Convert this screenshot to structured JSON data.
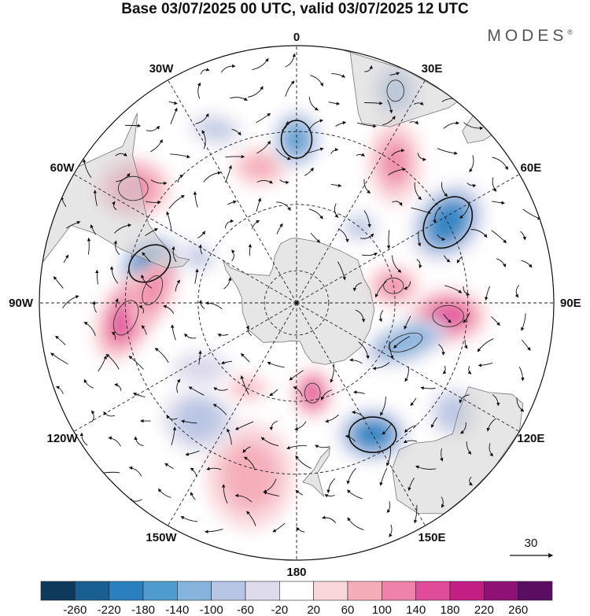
{
  "title": "Base 03/07/2025 00 UTC, valid 03/07/2025 12 UTC",
  "brand": {
    "name": "MODES",
    "mark": "®"
  },
  "longitude_labels": [
    "0",
    "30E",
    "60E",
    "90E",
    "120E",
    "150E",
    "180",
    "150W",
    "120W",
    "90W",
    "60W",
    "30W"
  ],
  "reference_vector": {
    "label": "30"
  },
  "colorbar": {
    "tick_labels": [
      "-260",
      "-220",
      "-180",
      "-140",
      "-100",
      "-60",
      "-20",
      "20",
      "60",
      "100",
      "140",
      "180",
      "220",
      "260"
    ],
    "colors": [
      "#0d3a5c",
      "#1a5f92",
      "#2a7fbf",
      "#4f9bd0",
      "#86b4dc",
      "#b7c6e4",
      "#dedcec",
      "#ffffff",
      "#f9d6da",
      "#f4aeba",
      "#ee82a8",
      "#e04c9a",
      "#c21e84",
      "#8f1175",
      "#5a0e62"
    ]
  },
  "anomalies": [
    {
      "lon": -75,
      "lat": -45,
      "value": -200,
      "rx": 38,
      "ry": 28,
      "rot": -35
    },
    {
      "lon": -95,
      "lat": -40,
      "value": 160,
      "rx": 30,
      "ry": 52,
      "rot": 25
    },
    {
      "lon": -85,
      "lat": -47,
      "value": 120,
      "rx": 24,
      "ry": 44,
      "rot": 25
    },
    {
      "lon": -55,
      "lat": -33,
      "value": 130,
      "rx": 42,
      "ry": 34,
      "rot": 0
    },
    {
      "lon": -65,
      "lat": -57,
      "value": -90,
      "rx": 20,
      "ry": 14,
      "rot": 30
    },
    {
      "lon": -15,
      "lat": -48,
      "value": 90,
      "rx": 32,
      "ry": 22,
      "rot": 0
    },
    {
      "lon": -25,
      "lat": -35,
      "value": -70,
      "rx": 36,
      "ry": 20,
      "rot": 10
    },
    {
      "lon": 0,
      "lat": -42,
      "value": -170,
      "rx": 26,
      "ry": 32,
      "rot": 0
    },
    {
      "lon": 25,
      "lat": -25,
      "value": -130,
      "rx": 24,
      "ry": 30,
      "rot": 0
    },
    {
      "lon": 35,
      "lat": -40,
      "value": 110,
      "rx": 30,
      "ry": 48,
      "rot": 0
    },
    {
      "lon": 40,
      "lat": -60,
      "value": -90,
      "rx": 20,
      "ry": 16,
      "rot": 0
    },
    {
      "lon": 62,
      "lat": -40,
      "value": -200,
      "rx": 36,
      "ry": 48,
      "rot": 40
    },
    {
      "lon": 80,
      "lat": -60,
      "value": 130,
      "rx": 28,
      "ry": 22,
      "rot": 0
    },
    {
      "lon": 95,
      "lat": -45,
      "value": 140,
      "rx": 44,
      "ry": 30,
      "rot": 0
    },
    {
      "lon": 110,
      "lat": -55,
      "value": -140,
      "rx": 50,
      "ry": 22,
      "rot": -20
    },
    {
      "lon": 125,
      "lat": -35,
      "value": -100,
      "rx": 26,
      "ry": 28,
      "rot": 0
    },
    {
      "lon": 150,
      "lat": -45,
      "value": -200,
      "rx": 40,
      "ry": 30,
      "rot": 0
    },
    {
      "lon": 170,
      "lat": -62,
      "value": 140,
      "rx": 22,
      "ry": 28,
      "rot": 0
    },
    {
      "lon": -165,
      "lat": -38,
      "value": 90,
      "rx": 50,
      "ry": 60,
      "rot": 0
    },
    {
      "lon": -140,
      "lat": -45,
      "value": -100,
      "rx": 40,
      "ry": 36,
      "rot": 0
    },
    {
      "lon": -125,
      "lat": -55,
      "value": -60,
      "rx": 40,
      "ry": 24,
      "rot": 0
    },
    {
      "lon": -150,
      "lat": -60,
      "value": 70,
      "rx": 30,
      "ry": 18,
      "rot": 0
    }
  ]
}
